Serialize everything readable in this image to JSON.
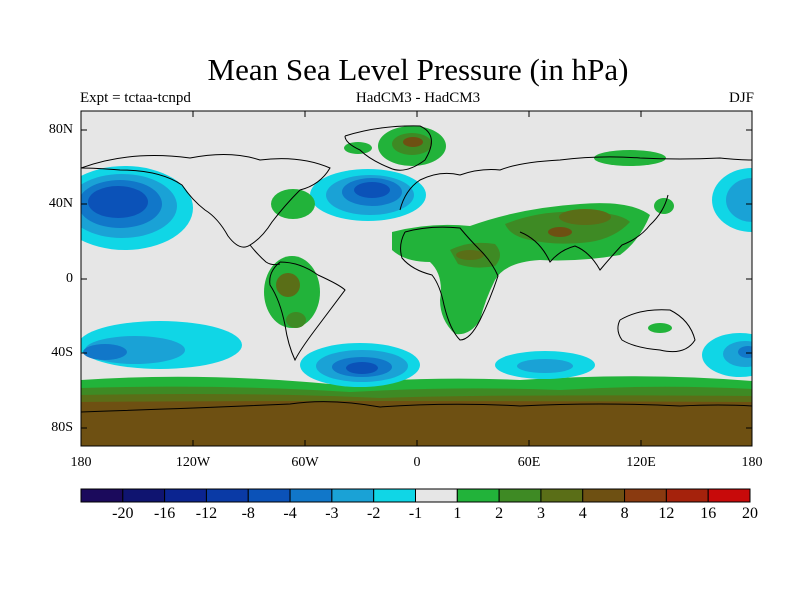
{
  "title": "Mean Sea Level Pressure (in hPa)",
  "subtitle_left": "Expt = tctaa-tcnpd",
  "subtitle_center": "HadCM3 - HadCM3",
  "subtitle_right": "DJF",
  "lat_ticks": [
    "80N",
    "40N",
    "0",
    "40S",
    "80S"
  ],
  "lon_ticks": [
    "180",
    "120W",
    "60W",
    "0",
    "60E",
    "120E",
    "180"
  ],
  "colorbar": {
    "labels": [
      "-20",
      "-16",
      "-12",
      "-8",
      "-4",
      "-3",
      "-2",
      "-1",
      "1",
      "2",
      "3",
      "4",
      "8",
      "12",
      "16",
      "20"
    ],
    "colors": [
      "#1b0a5c",
      "#0f1470",
      "#0b2490",
      "#0a3aa6",
      "#0b52b8",
      "#1177c9",
      "#1aa2d6",
      "#10d6e6",
      "#e6e6e6",
      "#22b33a",
      "#3e8a24",
      "#5a6e17",
      "#6e5012",
      "#8a3a10",
      "#a5220c",
      "#c80a0a"
    ]
  },
  "colors": {
    "background": "#e6e6e6",
    "negative_light": "#10d6e6",
    "negative_mid": "#1aa2d6",
    "negative_deep": "#0b52b8",
    "positive_light": "#22b33a",
    "positive_mid": "#3e8a24",
    "positive_deep": "#6e5012"
  }
}
